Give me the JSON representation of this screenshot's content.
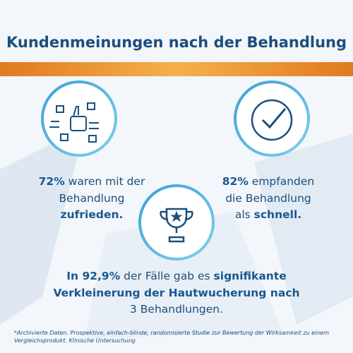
{
  "title": "Kundenmeinungen nach der Behandlung",
  "stats": [
    {
      "lines": [
        [
          {
            "text": "72%",
            "bold": true
          },
          {
            "text": " waren mit der",
            "bold": false
          }
        ],
        [
          {
            "text": "Behandlung",
            "bold": false
          }
        ],
        [
          {
            "text": "zufrieden.",
            "bold": true
          }
        ]
      ]
    },
    {
      "lines": [
        [
          {
            "text": "82%",
            "bold": true
          },
          {
            "text": " empfanden",
            "bold": false
          }
        ],
        [
          {
            "text": "die Behandlung",
            "bold": false
          }
        ],
        [
          {
            "text": "als ",
            "bold": false
          },
          {
            "text": "schnell.",
            "bold": true
          }
        ]
      ]
    },
    {
      "lines": [
        [
          {
            "text": "In 92,9%",
            "bold": true
          },
          {
            "text": " der Fälle gab es ",
            "bold": false
          },
          {
            "text": "signifikante",
            "bold": true
          }
        ],
        [
          {
            "text": "Verkleinerung der Hautwucherung nach",
            "bold": true
          }
        ],
        [
          {
            "text": "3 Behandlungen.",
            "bold": false
          }
        ]
      ]
    }
  ],
  "footnote": "*Archivierte Daten. Prospektive, einfach-blinde, randomisierte Studie zur Bewertung der Wirksamkeit zu einem Vergleichsprodukt. Klinische Untersuchung"
}
